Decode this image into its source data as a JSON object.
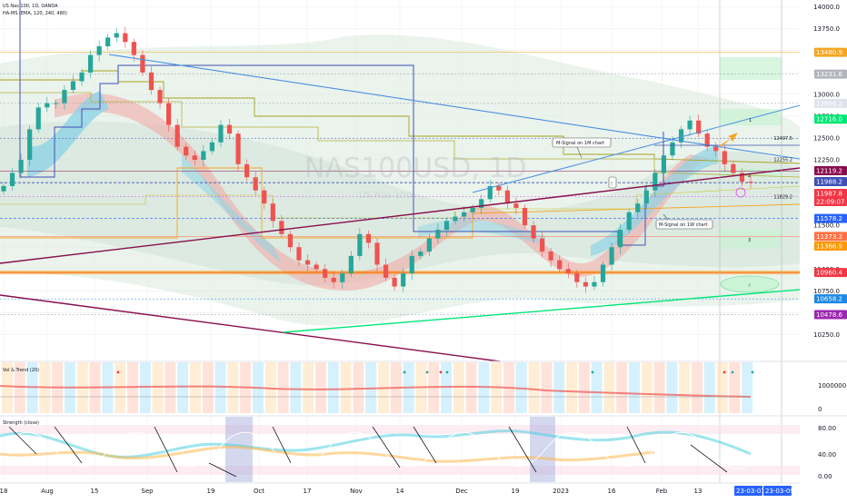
{
  "header": {
    "symbol_line": "US Nas 100, 1D, OANDA",
    "indicator_line": "HA-MS (EMA, 120, 240, 480)"
  },
  "watermark": {
    "symbol": "NAS100USD, 1D",
    "sub": "US Nas 100"
  },
  "colors": {
    "background": "#ffffff",
    "grid": "#e9ecf2",
    "candle_up": "#26a69a",
    "candle_down": "#ef5350",
    "bands": "#d9e9dd",
    "rsi_fill_down": "#f2a4a4",
    "rsi_fill_up": "#8fd3e6",
    "trendline_blue": "#4a90e2",
    "trendline_maroon": "#880e4f",
    "support_green": "#00e676",
    "signal_orange": "#f5a623",
    "m_signal": "#3f51b5",
    "hline_red": "#ff5252"
  },
  "chart_data": [
    {
      "type": "candlestick",
      "title": "US Nas 100, 1D, OANDA",
      "indicator": "HA-MS (EMA, 120, 240, 480)",
      "y_axis": {
        "ticks": [
          "14000.0",
          "13750.0",
          "13500.0",
          "13250.0",
          "13000.0",
          "12750.0",
          "12500.0",
          "12250.0",
          "12000.0",
          "11750.0",
          "11500.0",
          "11250.0",
          "11000.0",
          "10750.0",
          "10500.0",
          "10250.0"
        ],
        "ylim": [
          10130,
          14080
        ]
      },
      "x_axis": {
        "ticks": [
          "18",
          "Aug",
          "15",
          "Sep",
          "19",
          "Oct",
          "17",
          "Nov",
          "14",
          "Dec",
          "19",
          "2023",
          "16",
          "Feb",
          "13"
        ],
        "range_labels": [
          "23-03-01",
          "23-03-09"
        ]
      },
      "price_tags": [
        {
          "value": "13480.9",
          "bg": "#f5a623",
          "text": "#131722"
        },
        {
          "value": "13231.6",
          "bg": "#b2b5be",
          "text": "#131722"
        },
        {
          "value": "12896.2",
          "bg": "#e0e3eb",
          "text": "#131722"
        },
        {
          "value": "12716.0",
          "bg": "#00e676",
          "text": "#131722"
        },
        {
          "value": "12119.2",
          "bg": "#880e4f",
          "text": "#ffffff"
        },
        {
          "value": "11988.2",
          "bg": "#3f51b5",
          "text": "#ffffff"
        },
        {
          "value": "11987.8",
          "bg": "#f23645",
          "text": "#ffffff"
        },
        {
          "value": "22:09:07",
          "bg": "#f23645",
          "text": "#ffffff"
        },
        {
          "value": "11578.2",
          "bg": "#2962ff",
          "text": "#ffffff"
        },
        {
          "value": "11373.2",
          "bg": "#ff7043",
          "text": "#131722"
        },
        {
          "value": "11366.9",
          "bg": "#ff9800",
          "text": "#131722"
        },
        {
          "value": "10960.4",
          "bg": "#f23645",
          "text": "#ffffff"
        },
        {
          "value": "10658.2",
          "bg": "#1e88e5",
          "text": "#ffffff"
        },
        {
          "value": "10478.6",
          "bg": "#9c27b0",
          "text": "#ffffff"
        }
      ],
      "line_labels": [
        {
          "value": "12497.5",
          "y": 12497.5
        },
        {
          "value": "12255.2",
          "y": 12255.2
        },
        {
          "value": "11829.2",
          "y": 11829.2
        }
      ],
      "annotations": [
        "M-Signal on 1M chart",
        "M-Signal on 1W chart",
        "1",
        "2",
        "3",
        "4",
        "!"
      ],
      "candles_close": [
        11950,
        12100,
        12250,
        12600,
        12850,
        12900,
        12900,
        13050,
        13150,
        13250,
        13450,
        13550,
        13650,
        13700,
        13600,
        13450,
        13250,
        13050,
        12900,
        12650,
        12400,
        12300,
        12250,
        12350,
        12450,
        12650,
        12550,
        12200,
        12050,
        11900,
        11750,
        11550,
        11400,
        11250,
        11100,
        11050,
        11000,
        10900,
        10850,
        10950,
        11150,
        11400,
        11300,
        11050,
        10900,
        10800,
        10950,
        11150,
        11200,
        11350,
        11450,
        11550,
        11600,
        11650,
        11700,
        11800,
        11950,
        11900,
        11750,
        11700,
        11500,
        11350,
        11200,
        11100,
        11000,
        10950,
        10850,
        10800,
        10850,
        11050,
        11250,
        11450,
        11650,
        11750,
        11900,
        12100,
        12300,
        12450,
        12600,
        12700,
        12550,
        12400,
        12350,
        12200,
        12100,
        12000,
        11988
      ]
    },
    {
      "type": "bar",
      "title": "Vol & Trend (20)",
      "y_axis": {
        "ticks": [
          "1000000",
          "0"
        ]
      }
    },
    {
      "type": "line",
      "title": "Strength (close)",
      "y_axis": {
        "ticks": [
          "80.00",
          "40.00",
          "0.00"
        ]
      }
    }
  ]
}
